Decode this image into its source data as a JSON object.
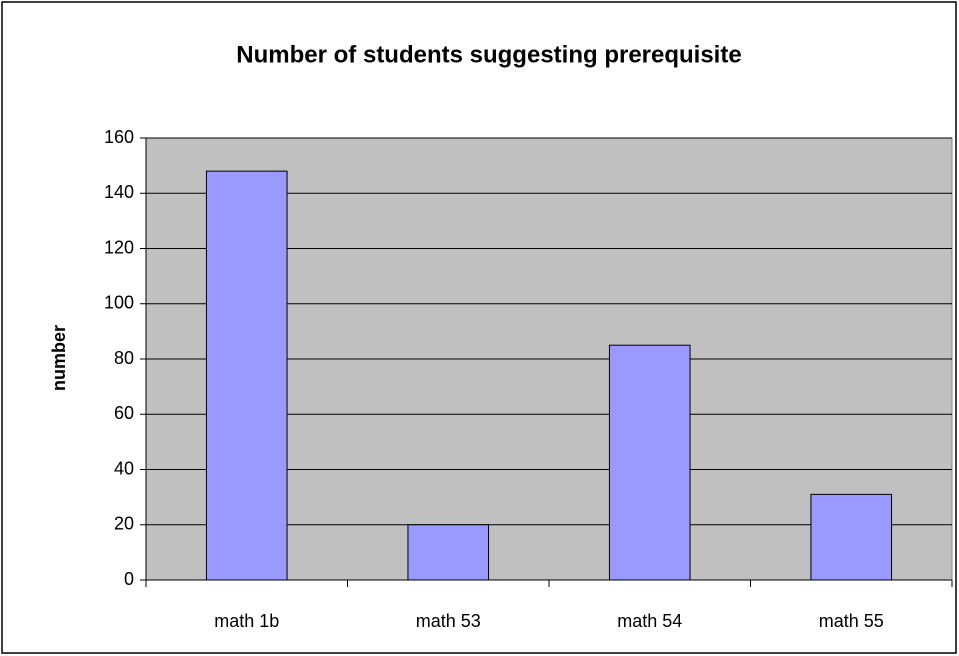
{
  "chart_data": {
    "type": "bar",
    "title": "Number of students suggesting prerequisite",
    "y_label": "number",
    "categories": [
      "math 1b",
      "math 53",
      "math 54",
      "math 55"
    ],
    "values": [
      148,
      20,
      85,
      31
    ],
    "color": "#9999ff",
    "plot_background": "#c0c0c0",
    "ylim": [
      0,
      160
    ],
    "yticks": [
      0,
      20,
      40,
      60,
      80,
      100,
      120,
      140,
      160
    ],
    "grid": true
  }
}
